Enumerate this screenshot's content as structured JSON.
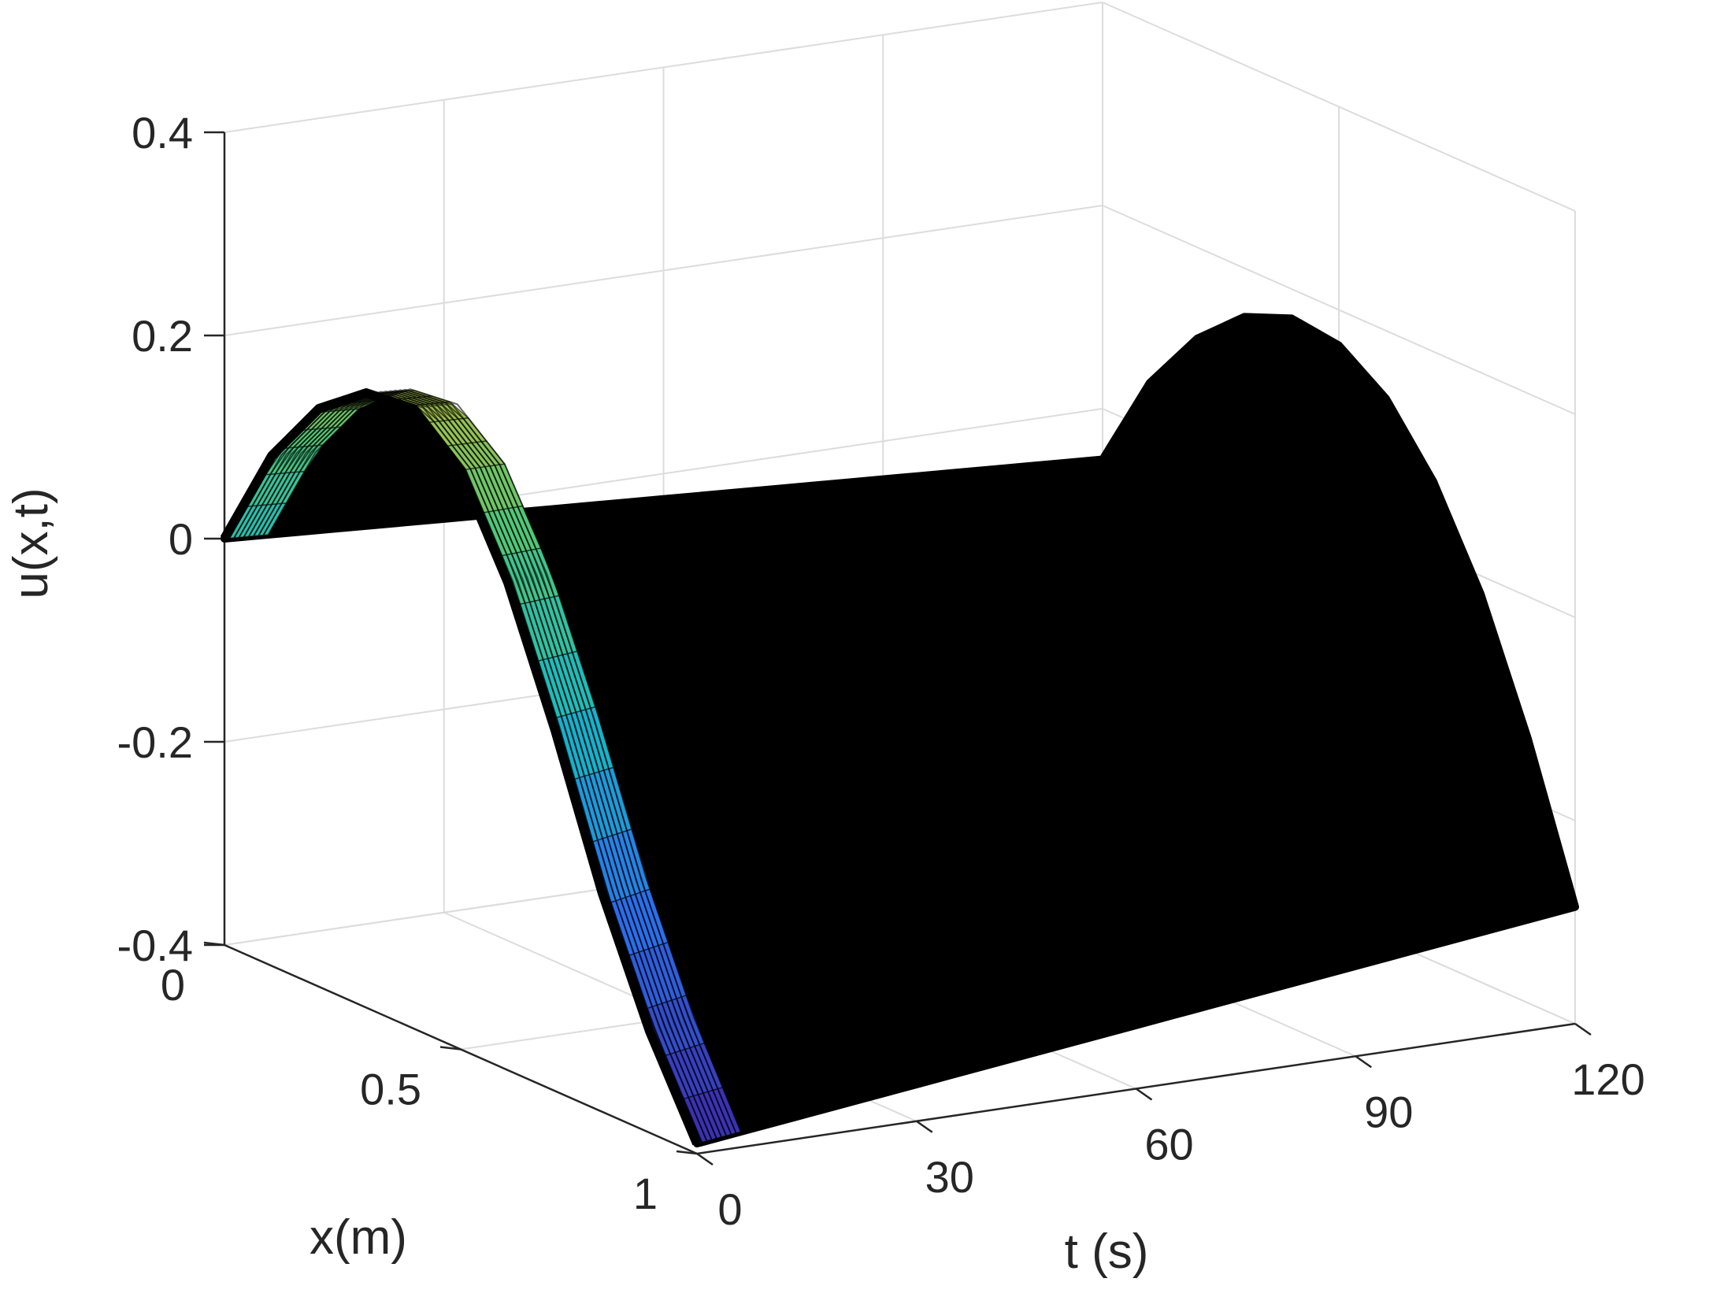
{
  "chart_data": {
    "type": "surface",
    "title": "",
    "xlabel": "x(m)",
    "tlabel": "t (s)",
    "zlabel": "u(x,t)",
    "x_range": [
      0,
      1
    ],
    "t_range": [
      0,
      120
    ],
    "z_range": [
      -0.4,
      0.4
    ],
    "x_ticks": [
      "0",
      "0.5",
      "1"
    ],
    "t_ticks": [
      "0",
      "30",
      "60",
      "90",
      "120"
    ],
    "z_ticks": [
      "0.4",
      "0.2",
      "0",
      "-0.2",
      "-0.4"
    ],
    "grid": true,
    "colormap": "parula",
    "edge_color": "#000000",
    "profile_t0": [
      {
        "x": 0.0,
        "u": 0.0
      },
      {
        "x": 0.1,
        "u": 0.102
      },
      {
        "x": 0.2,
        "u": 0.169
      },
      {
        "x": 0.3,
        "u": 0.205
      },
      {
        "x": 0.4,
        "u": 0.21
      },
      {
        "x": 0.5,
        "u": 0.17
      },
      {
        "x": 0.6,
        "u": 0.08
      },
      {
        "x": 0.7,
        "u": -0.045
      },
      {
        "x": 0.8,
        "u": -0.185
      },
      {
        "x": 0.9,
        "u": -0.3
      },
      {
        "x": 1.0,
        "u": -0.39
      }
    ],
    "profile_t120": [
      {
        "x": 0.0,
        "u": -0.05
      },
      {
        "x": 0.1,
        "u": 0.046
      },
      {
        "x": 0.2,
        "u": 0.11
      },
      {
        "x": 0.3,
        "u": 0.152
      },
      {
        "x": 0.4,
        "u": 0.171
      },
      {
        "x": 0.5,
        "u": 0.165
      },
      {
        "x": 0.6,
        "u": 0.133
      },
      {
        "x": 0.7,
        "u": 0.072
      },
      {
        "x": 0.8,
        "u": -0.018
      },
      {
        "x": 0.9,
        "u": -0.14
      },
      {
        "x": 1.0,
        "u": -0.285
      }
    ]
  }
}
